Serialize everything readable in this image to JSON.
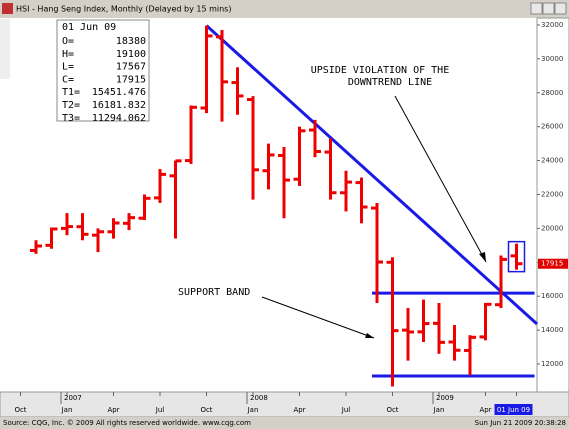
{
  "window_title": "HSI - Hang Seng Index, Monthly (Delayed by 15 mins)",
  "footer": {
    "source": "Source: CQG, Inc. © 2009 All rights reserved worldwide. www.cqg.com",
    "timestamp": "Sun Jun 21 2009 20:38:28"
  },
  "chart_data": {
    "type": "ohlc",
    "color": "#ee0000",
    "x": [
      "2006-11",
      "2006-12",
      "2007-01",
      "2007-02",
      "2007-03",
      "2007-04",
      "2007-05",
      "2007-06",
      "2007-07",
      "2007-08",
      "2007-09",
      "2007-10",
      "2007-11",
      "2007-12",
      "2008-01",
      "2008-02",
      "2008-03",
      "2008-04",
      "2008-05",
      "2008-06",
      "2008-07",
      "2008-08",
      "2008-09",
      "2008-10",
      "2008-11",
      "2008-12",
      "2009-01",
      "2009-02",
      "2009-03",
      "2009-04",
      "2009-05",
      "2009-06"
    ],
    "open": [
      18700,
      19000,
      20000,
      20100,
      19600,
      19800,
      20300,
      20600,
      21800,
      23100,
      24000,
      27100,
      31300,
      28600,
      27600,
      23400,
      24300,
      22900,
      25800,
      24500,
      22100,
      22700,
      21200,
      18000,
      14000,
      13900,
      14400,
      13300,
      12800,
      13600,
      15500,
      18380
    ],
    "high": [
      19300,
      20050,
      20900,
      20900,
      20000,
      20600,
      20900,
      22000,
      23500,
      24000,
      27250,
      31958,
      31700,
      29500,
      27800,
      25000,
      24800,
      26000,
      26400,
      25300,
      23400,
      23000,
      21500,
      18300,
      15300,
      15800,
      15600,
      14300,
      13700,
      15600,
      18400,
      19100
    ],
    "low": [
      18500,
      18800,
      19600,
      19300,
      18600,
      19400,
      19900,
      20500,
      21500,
      19400,
      23800,
      26800,
      26300,
      26700,
      21700,
      22300,
      20600,
      22500,
      24200,
      21700,
      21000,
      20300,
      15600,
      10676,
      12200,
      13300,
      12600,
      12200,
      11345,
      13400,
      15300,
      17567
    ],
    "close": [
      18960,
      19965,
      20106,
      19651,
      19800,
      20318,
      20634,
      21773,
      23184,
      23984,
      27142,
      31352,
      28643,
      27812,
      23455,
      24331,
      22849,
      25755,
      24533,
      22102,
      22731,
      21261,
      18016,
      13969,
      13888,
      14387,
      13278,
      12812,
      13576,
      15521,
      18171,
      17915
    ],
    "ylim": [
      10350,
      32350
    ],
    "yticks": [
      12000,
      14000,
      16000,
      18000,
      20000,
      22000,
      24000,
      26000,
      28000,
      30000,
      32000
    ],
    "xticks": [
      {
        "value": "2006-10",
        "label": "Oct"
      },
      {
        "value": "2007-01",
        "label": "Jan"
      },
      {
        "value": "2007-04",
        "label": "Apr"
      },
      {
        "value": "2007-07",
        "label": "Jul"
      },
      {
        "value": "2007-10",
        "label": "Oct"
      },
      {
        "value": "2008-01",
        "label": "Jan"
      },
      {
        "value": "2008-04",
        "label": "Apr"
      },
      {
        "value": "2008-07",
        "label": "Jul"
      },
      {
        "value": "2008-10",
        "label": "Oct"
      },
      {
        "value": "2009-01",
        "label": "Jan"
      },
      {
        "value": "2009-04",
        "label": "Apr"
      },
      {
        "value": "2009-06",
        "label": "01 Jun 09"
      }
    ],
    "year_ticks": [
      {
        "value": "2007-01",
        "label": "2007"
      },
      {
        "value": "2008-01",
        "label": "2008"
      },
      {
        "value": "2009-01",
        "label": "2009"
      }
    ],
    "line_color": "#1a1ae6",
    "info": {
      "date": "01 Jun 09",
      "rows": [
        {
          "label": "O=",
          "value": 18380
        },
        {
          "label": "H=",
          "value": 19100
        },
        {
          "label": "L=",
          "value": 17567
        },
        {
          "label": "C=",
          "value": 17915
        },
        {
          "label": "T1=",
          "value": 15451.476
        },
        {
          "label": "T2=",
          "value": 16181.832
        },
        {
          "label": "T3=",
          "value": 11294.062
        }
      ]
    },
    "annotations": {
      "upside": [
        "UPSIDE VIOLATION OF THE",
        "DOWNTREND LINE"
      ],
      "support": "SUPPORT BAND"
    }
  }
}
